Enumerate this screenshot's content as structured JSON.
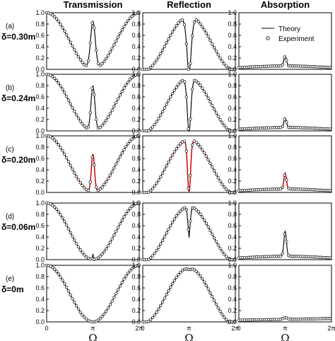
{
  "chart_data": {
    "type": "line",
    "columns": [
      "Transmission",
      "Reflection",
      "Absorption"
    ],
    "rows": [
      {
        "label": "(a)",
        "delta": "δ=0.30m"
      },
      {
        "label": "(b)",
        "delta": "δ=0.24m"
      },
      {
        "label": "(c)",
        "delta": "δ=0.20m"
      },
      {
        "label": "(d)",
        "delta": "δ=0.06m"
      },
      {
        "label": "(e)",
        "delta": "δ=0m"
      }
    ],
    "xlabel": "Ω",
    "xticks": [
      "0",
      "π",
      "2π"
    ],
    "xlim": [
      0,
      6.283
    ],
    "ylim": [
      0,
      1.0
    ],
    "yticks": [
      "0.0",
      "0.2",
      "0.4",
      "0.6",
      "0.8",
      "1.0"
    ],
    "legend": {
      "position": "top-right",
      "theory": "Theory",
      "experiment": "Experiment"
    },
    "series_colors": {
      "theory": "#000000",
      "experiment_marker": "#000000",
      "highlight": "#cc0000"
    },
    "panel_params": [
      {
        "gap_width": 0.42,
        "peak": 0.85,
        "abs_peak": 0.18
      },
      {
        "gap_width": 0.34,
        "peak": 0.8,
        "abs_peak": 0.17
      },
      {
        "gap_width": 0.28,
        "peak": 0.68,
        "abs_peak": 0.28
      },
      {
        "gap_width": 0.06,
        "peak": 0.1,
        "abs_peak": 0.45
      },
      {
        "gap_width": 0.0,
        "peak": 0.0,
        "abs_peak": 0.06
      }
    ]
  }
}
